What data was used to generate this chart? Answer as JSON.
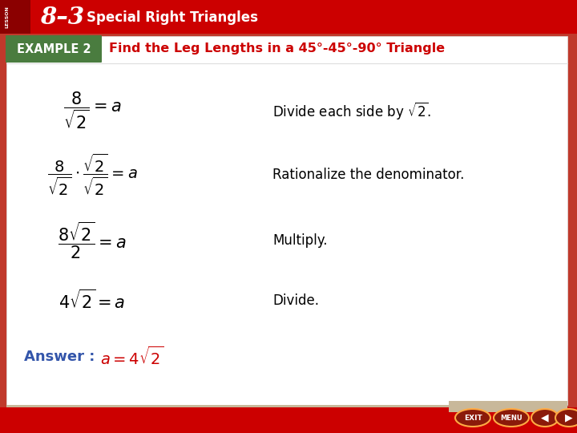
{
  "bg_outer": "#c0392b",
  "bg_inner": "#ffffff",
  "header_bg": "#cc0000",
  "header_dark": "#8b0000",
  "header_text_num": "8–3",
  "header_text_sub": "Special Right Triangles",
  "example_bg": "#4a7c3f",
  "example_text": "EXAMPLE 2",
  "title_text": "Find the Leg Lengths in a 45°-45°-90° Triangle",
  "title_color": "#cc0000",
  "math_color": "#000000",
  "answer_label_color": "#3355aa",
  "answer_eq_color": "#cc0000",
  "step1_math": "$\\dfrac{8}{\\sqrt{2}} = a$",
  "step1_text": "Divide each side by $\\sqrt{2}$.",
  "step2_math": "$\\dfrac{8}{\\sqrt{2}} \\cdot \\dfrac{\\sqrt{2}}{\\sqrt{2}} = a$",
  "step2_text": "Rationalize the denominator.",
  "step3_math": "$\\dfrac{8\\sqrt{2}}{2} = a$",
  "step3_text": "Multiply.",
  "step4_math": "$4\\sqrt{2} = a$",
  "step4_text": "Divide.",
  "answer_label": "Answer :  ",
  "answer_math": "$a = 4\\sqrt{2}$",
  "footer_bg": "#cc0000",
  "nav_footer_bg": "#c8b89a"
}
